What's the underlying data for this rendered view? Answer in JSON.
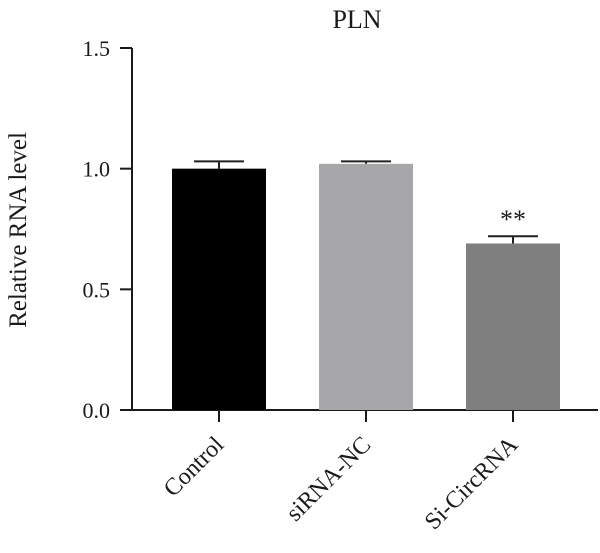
{
  "chart_data": {
    "type": "bar",
    "title": "PLN",
    "xlabel": "",
    "ylabel": "Relative RNA level",
    "ylim": [
      0,
      1.5
    ],
    "yticks": [
      "0.0",
      "0.5",
      "1.0",
      "1.5"
    ],
    "categories": [
      "Control",
      "siRNA-NC",
      "Si-CircRNA"
    ],
    "values": [
      1.0,
      1.02,
      0.69
    ],
    "errors": [
      0.03,
      0.01,
      0.03
    ],
    "annotations": [
      "",
      "",
      "**"
    ],
    "colors": [
      "#000000",
      "#a7a7aa",
      "#7f7f7f"
    ],
    "grid": false,
    "legend": "none"
  }
}
